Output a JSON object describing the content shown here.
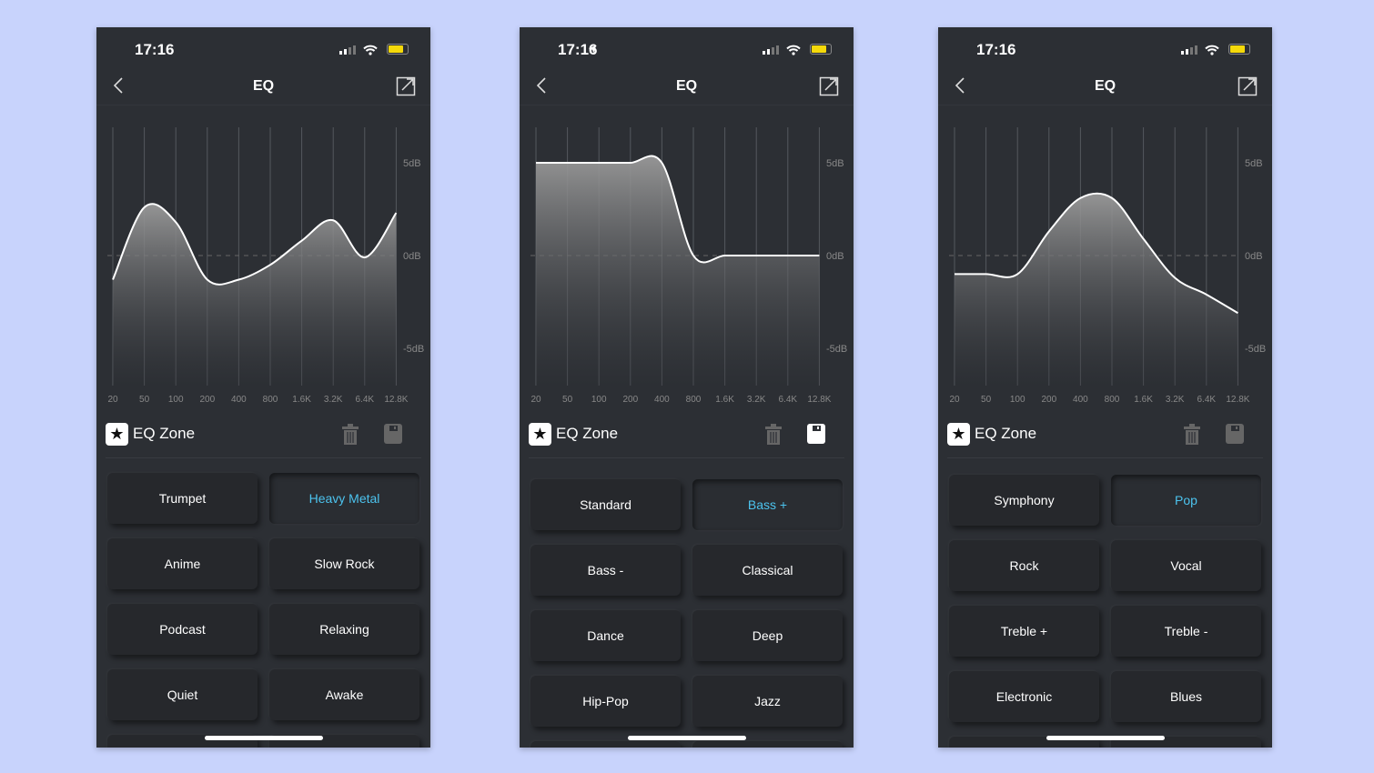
{
  "colors": {
    "background": "#c8d3fc",
    "accent": "#4cc3ee",
    "battery": "#f5d90a"
  },
  "axis": {
    "freqs": [
      "20",
      "50",
      "100",
      "200",
      "400",
      "800",
      "1.6K",
      "3.2K",
      "6.4K",
      "12.8K"
    ],
    "db_labels": [
      "5dB",
      "0dB",
      "-5dB"
    ],
    "ylim": [
      -7,
      7
    ]
  },
  "phones": [
    {
      "time": "17:16",
      "location_arrow": false,
      "title": "EQ",
      "zone_label": "EQ Zone",
      "save_active": false,
      "gains_db": [
        -1.3,
        2.6,
        1.8,
        -1.3,
        -1.3,
        -0.5,
        0.8,
        1.9,
        -0.1,
        2.3
      ],
      "presets": [
        "Trumpet",
        "Heavy Metal",
        "Anime",
        "Slow Rock",
        "Podcast",
        "Relaxing",
        "Quiet",
        "Awake"
      ],
      "selected": "Heavy Metal"
    },
    {
      "time": "17:16",
      "location_arrow": true,
      "title": "EQ",
      "zone_label": "EQ Zone",
      "save_active": true,
      "gains_db": [
        5,
        5,
        5,
        5,
        5,
        0,
        0,
        0,
        0,
        0
      ],
      "presets": [
        "Standard",
        "Bass +",
        "Bass -",
        "Classical",
        "Dance",
        "Deep",
        "Hip-Pop",
        "Jazz"
      ],
      "selected": "Bass +"
    },
    {
      "time": "17:16",
      "location_arrow": false,
      "title": "EQ",
      "zone_label": "EQ Zone",
      "save_active": false,
      "gains_db": [
        -1,
        -1,
        -1,
        1.3,
        3.1,
        3.1,
        0.9,
        -1.2,
        -2.1,
        -3.1
      ],
      "presets": [
        "Symphony",
        "Pop",
        "Rock",
        "Vocal",
        "Treble +",
        "Treble -",
        "Electronic",
        "Blues"
      ],
      "selected": "Pop"
    }
  ]
}
